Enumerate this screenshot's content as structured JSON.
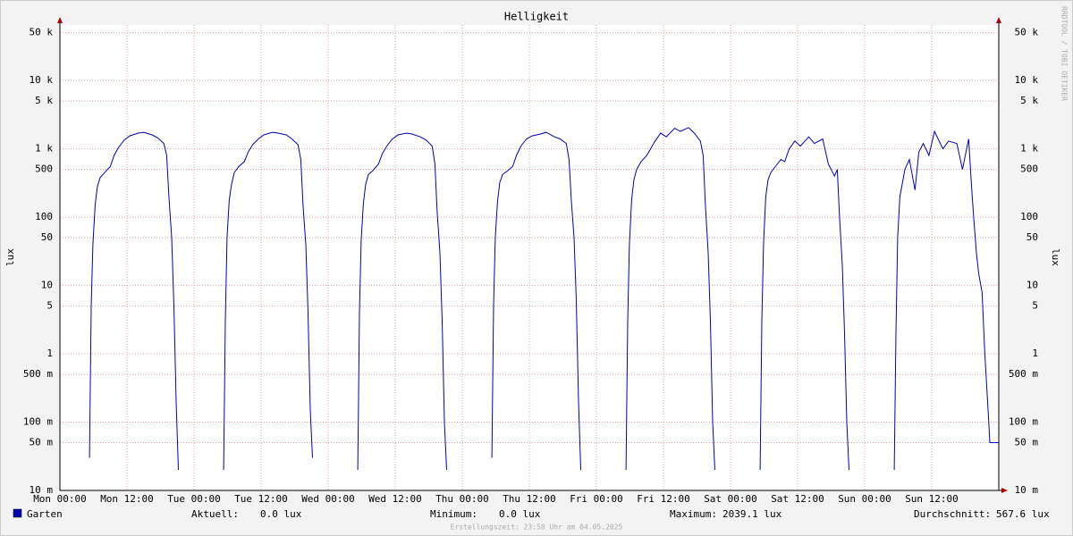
{
  "chart_data": {
    "type": "line",
    "title": "Helligkeit",
    "y_label": "lux",
    "watermark": "RRDTOOL / TOBI OETIKER",
    "footer": "Erstellungszeit: 23:58 Uhr am 04.05.2025",
    "log_scale": true,
    "grid": true,
    "xlim": [
      0,
      168
    ],
    "xticks": [
      {
        "value": 0,
        "label": "Mon 00:00"
      },
      {
        "value": 12,
        "label": "Mon 12:00"
      },
      {
        "value": 24,
        "label": "Tue 00:00"
      },
      {
        "value": 36,
        "label": "Tue 12:00"
      },
      {
        "value": 48,
        "label": "Wed 00:00"
      },
      {
        "value": 60,
        "label": "Wed 12:00"
      },
      {
        "value": 72,
        "label": "Thu 00:00"
      },
      {
        "value": 84,
        "label": "Thu 12:00"
      },
      {
        "value": 96,
        "label": "Fri 00:00"
      },
      {
        "value": 108,
        "label": "Fri 12:00"
      },
      {
        "value": 120,
        "label": "Sat 00:00"
      },
      {
        "value": 132,
        "label": "Sat 12:00"
      },
      {
        "value": 144,
        "label": "Sun 00:00"
      },
      {
        "value": 156,
        "label": "Sun 12:00"
      }
    ],
    "ylim": [
      0.01,
      65000
    ],
    "yticks": [
      {
        "value": 0.01,
        "label": "10 m"
      },
      {
        "value": 0.05,
        "label": "50 m"
      },
      {
        "value": 0.1,
        "label": "100 m"
      },
      {
        "value": 0.5,
        "label": "500 m"
      },
      1,
      5,
      10,
      50,
      100,
      500,
      {
        "value": 1000,
        "label": "1 k"
      },
      {
        "value": 5000,
        "label": "5 k"
      },
      {
        "value": 10000,
        "label": "10 k"
      },
      {
        "value": 50000,
        "label": "50 k"
      }
    ],
    "x": [
      5.3,
      5.6,
      5.9,
      6.3,
      6.7,
      7.2,
      8,
      9,
      9.7,
      10.5,
      11.5,
      12.5,
      14,
      15,
      16.5,
      17.5,
      18.6,
      19.1,
      19.5,
      20,
      20.4,
      20.8,
      21.2,
      23,
      29.3,
      29.6,
      29.9,
      30.3,
      30.7,
      31.2,
      32,
      33,
      33.7,
      34.5,
      35.5,
      36.5,
      38,
      39,
      40.5,
      41.5,
      42.6,
      43.1,
      43.5,
      44,
      44.4,
      44.8,
      45.2,
      47,
      53.3,
      53.6,
      53.9,
      54.3,
      54.7,
      55.2,
      56,
      57,
      57.7,
      58.5,
      59.5,
      60.5,
      62,
      63,
      64.5,
      65.5,
      66.6,
      67.1,
      67.5,
      68,
      68.4,
      68.8,
      69.2,
      71,
      77.3,
      77.6,
      77.9,
      78.3,
      78.7,
      79.2,
      80,
      81,
      81.7,
      82.5,
      83.5,
      84.5,
      86,
      87,
      88.5,
      89.5,
      90.6,
      91.1,
      91.5,
      92,
      92.4,
      92.8,
      93.2,
      95,
      101.3,
      101.6,
      101.9,
      102.3,
      102.7,
      103.2,
      104,
      105,
      105.7,
      106.5,
      107.5,
      108.5,
      110,
      111,
      112.5,
      113.5,
      114.6,
      115.1,
      115.5,
      116,
      116.4,
      116.8,
      117.2,
      119,
      125.3,
      125.6,
      125.9,
      126.3,
      126.7,
      127.2,
      128,
      129,
      129.7,
      130.5,
      131.5,
      132.5,
      134,
      135,
      136.5,
      137.5,
      138.6,
      139.1,
      139.5,
      140,
      140.4,
      140.8,
      141.2,
      143,
      149.3,
      149.6,
      149.9,
      150.3,
      150.7,
      151.2,
      152,
      153,
      153.7,
      154.5,
      155.5,
      156.5,
      158,
      159,
      160.5,
      161.5,
      162.6,
      163.1,
      163.5,
      164,
      164.4,
      165,
      165.5,
      166.2,
      166.4,
      168
    ],
    "series": [
      {
        "name": "Garten",
        "color": "#0000b4",
        "values": [
          0.03,
          5,
          40,
          150,
          280,
          380,
          450,
          550,
          800,
          1050,
          1350,
          1550,
          1700,
          1750,
          1600,
          1450,
          1200,
          800,
          200,
          50,
          5,
          0.2,
          0.02,
          null,
          0.02,
          3,
          50,
          180,
          300,
          450,
          550,
          650,
          900,
          1150,
          1400,
          1600,
          1750,
          1700,
          1600,
          1400,
          1150,
          700,
          150,
          40,
          4,
          0.15,
          0.03,
          null,
          0.02,
          4,
          45,
          160,
          300,
          420,
          480,
          600,
          850,
          1100,
          1400,
          1600,
          1700,
          1650,
          1500,
          1350,
          1100,
          600,
          120,
          30,
          3,
          0.1,
          0.02,
          null,
          0.03,
          5,
          50,
          170,
          320,
          420,
          470,
          550,
          800,
          1100,
          1400,
          1550,
          1650,
          1750,
          1500,
          1400,
          1200,
          700,
          180,
          50,
          6,
          0.2,
          0.02,
          null,
          0.02,
          3,
          40,
          180,
          350,
          500,
          650,
          800,
          1000,
          1300,
          1700,
          1500,
          2000,
          1800,
          2050,
          1700,
          1300,
          800,
          150,
          30,
          3,
          0.1,
          0.02,
          null,
          0.02,
          3,
          40,
          200,
          350,
          450,
          550,
          700,
          650,
          1000,
          1300,
          1100,
          1500,
          1200,
          1400,
          600,
          400,
          500,
          100,
          20,
          2,
          0.1,
          0.02,
          null,
          0.02,
          2,
          50,
          200,
          300,
          500,
          700,
          250,
          900,
          1200,
          800,
          1800,
          1000,
          1300,
          1200,
          500,
          1400,
          300,
          100,
          30,
          15,
          8,
          1,
          0.1,
          0.05,
          0.05
        ]
      }
    ],
    "stats": [
      {
        "label": "Aktuell:",
        "value": "0.0 lux"
      },
      {
        "label": "Minimum:",
        "value": "0.0 lux"
      },
      {
        "label": "Maximum:",
        "value": "2039.1 lux"
      },
      {
        "label": "Durchschnitt:",
        "value": "567.6 lux"
      }
    ]
  }
}
